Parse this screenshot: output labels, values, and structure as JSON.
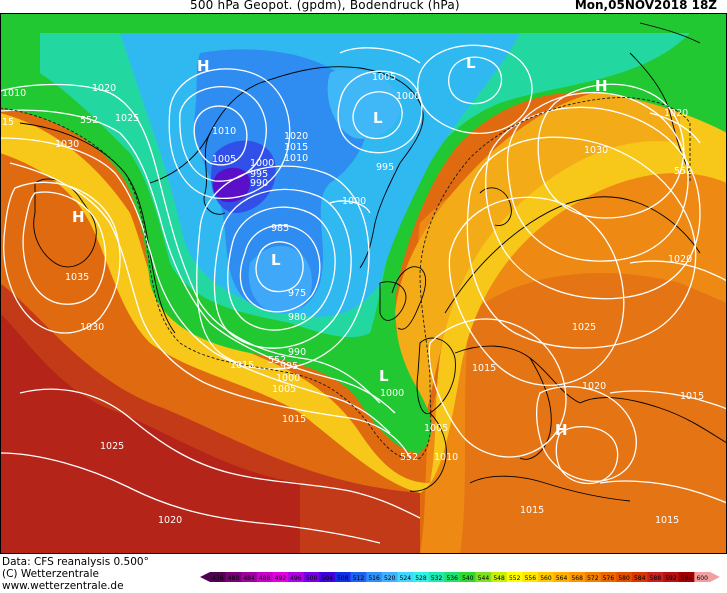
{
  "header": {
    "title": "500 hPa Geopot. (gpdm), Bodendruck (hPa)",
    "timestamp": "Mon,05NOV2018 18Z"
  },
  "footer": {
    "data_source": "Data: CFS reanalysis 0.500°",
    "copyright": "(C) Wetterzentrale",
    "website": "www.wetterzentrale.de"
  },
  "colorbar": {
    "values": [
      "476",
      "480",
      "484",
      "488",
      "492",
      "496",
      "500",
      "504",
      "508",
      "512",
      "516",
      "520",
      "524",
      "528",
      "532",
      "536",
      "540",
      "544",
      "548",
      "552",
      "556",
      "560",
      "564",
      "568",
      "572",
      "576",
      "580",
      "584",
      "588",
      "592",
      "596",
      "600"
    ],
    "colors": [
      "#500050",
      "#7a007a",
      "#a000a0",
      "#c800c8",
      "#e000e0",
      "#b000e8",
      "#7800e8",
      "#4000e0",
      "#1030e8",
      "#2060f0",
      "#3090f8",
      "#40b0ff",
      "#40d8ff",
      "#30f0e8",
      "#20e8b0",
      "#20e070",
      "#30d830",
      "#80e020",
      "#c8f000",
      "#ffff00",
      "#ffe800",
      "#ffc800",
      "#ffb000",
      "#ff9800",
      "#f08000",
      "#e86800",
      "#e05000",
      "#d83800",
      "#c82020",
      "#b81010",
      "#a00000",
      "#f0a0a0"
    ]
  },
  "map": {
    "isobar_labels": [
      "1010",
      "1020",
      "1025",
      "15",
      "1030",
      "1010",
      "1005",
      "1020",
      "1015",
      "1010",
      "1000",
      "995",
      "990",
      "985",
      "975",
      "980",
      "990",
      "995",
      "1000",
      "1005",
      "1015",
      "1005",
      "1000",
      "995",
      "1000",
      "1000",
      "1005",
      "1010",
      "1020",
      "1030",
      "1020",
      "1025",
      "1020",
      "1015",
      "1015",
      "1015",
      "1035",
      "1030",
      "1025",
      "1020",
      "1015",
      "1015",
      "1010",
      "1005"
    ],
    "gpdm_labels": [
      "552",
      "552",
      "552",
      "552"
    ],
    "pressure_centers": [
      "H",
      "H",
      "L",
      "L",
      "L",
      "H",
      "L",
      "H"
    ]
  }
}
